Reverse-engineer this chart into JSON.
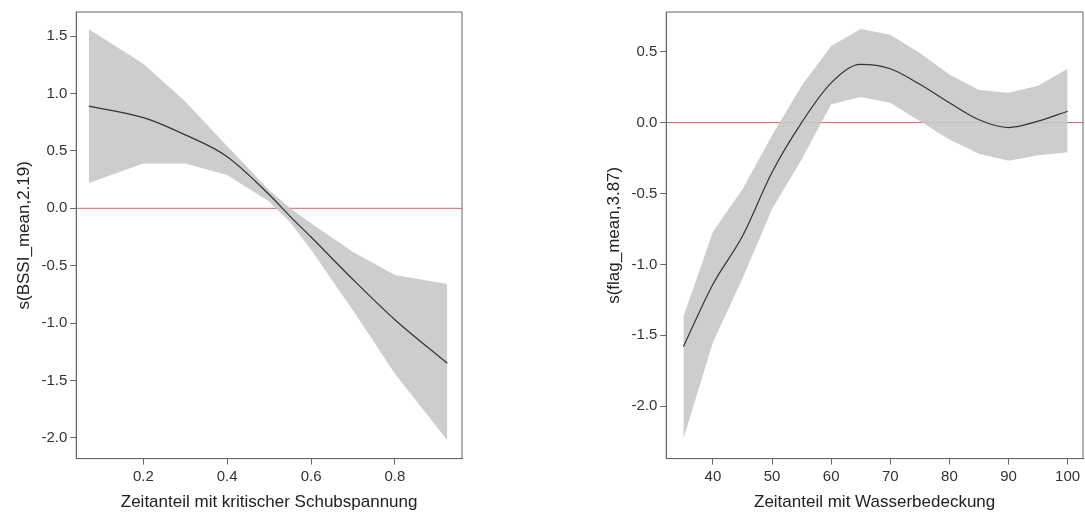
{
  "chart_data": [
    {
      "type": "line",
      "xlabel": "Zeitanteil mit kritischer Schubspannung",
      "ylabel": "s(BSSI_mean,2.19)",
      "x": [
        0.07,
        0.2,
        0.3,
        0.4,
        0.5,
        0.55,
        0.6,
        0.7,
        0.8,
        0.925
      ],
      "series": [
        {
          "color": "#333333",
          "values": [
            0.89,
            0.79,
            0.64,
            0.45,
            0.12,
            -0.07,
            -0.25,
            -0.62,
            -0.97,
            -1.35
          ],
          "upper": [
            1.56,
            1.26,
            0.93,
            0.54,
            0.16,
            0.0,
            -0.13,
            -0.38,
            -0.58,
            -0.66
          ],
          "lower": [
            0.22,
            0.39,
            0.39,
            0.29,
            0.06,
            -0.12,
            -0.36,
            -0.89,
            -1.44,
            -2.02
          ]
        }
      ],
      "xlim": [
        0.04,
        0.96
      ],
      "xticks": [
        0.2,
        0.4,
        0.6,
        0.8
      ],
      "ylim": [
        -2.18,
        1.71
      ],
      "yticks": [
        {
          "value": -2,
          "label": "-2.0"
        },
        {
          "value": -1.5,
          "label": "-1.5"
        },
        {
          "value": -1,
          "label": "-1.0"
        },
        {
          "value": -0.5,
          "label": "-0.5"
        },
        {
          "value": 0,
          "label": "0.0"
        },
        {
          "value": 0.5,
          "label": "0.5"
        },
        {
          "value": 1,
          "label": "1.0"
        },
        {
          "value": 1.5,
          "label": "1.5"
        }
      ],
      "ref_lines": [
        {
          "axis": "y",
          "value": 0,
          "color": "#e06060"
        }
      ],
      "grid": false,
      "legend": false,
      "marker": "none",
      "line_style": "solid"
    },
    {
      "type": "line",
      "xlabel": "Zeitanteil mit Wasserbedeckung",
      "ylabel": "s(flag_mean,3.87)",
      "x": [
        35,
        40,
        45,
        50,
        55,
        60,
        65,
        70,
        75,
        80,
        85,
        90,
        95,
        100
      ],
      "series": [
        {
          "color": "#333333",
          "values": [
            -1.58,
            -1.14,
            -0.8,
            -0.35,
            0.0,
            0.28,
            0.41,
            0.38,
            0.27,
            0.14,
            0.02,
            -0.035,
            0.01,
            0.08
          ],
          "upper": [
            -1.37,
            -0.77,
            -0.47,
            -0.09,
            0.26,
            0.54,
            0.66,
            0.62,
            0.49,
            0.34,
            0.23,
            0.21,
            0.26,
            0.38
          ],
          "lower": [
            -2.23,
            -1.55,
            -1.1,
            -0.61,
            -0.26,
            0.13,
            0.18,
            0.14,
            0.01,
            -0.12,
            -0.22,
            -0.27,
            -0.23,
            -0.21
          ]
        }
      ],
      "xlim": [
        32.1,
        102.6
      ],
      "xticks": [
        40,
        50,
        60,
        70,
        80,
        90,
        100
      ],
      "ylim": [
        -2.37,
        0.78
      ],
      "yticks": [
        {
          "value": -2,
          "label": "-2.0"
        },
        {
          "value": -1.5,
          "label": "-1.5"
        },
        {
          "value": -1,
          "label": "-1.0"
        },
        {
          "value": -0.5,
          "label": "-0.5"
        },
        {
          "value": 0,
          "label": "0.0"
        },
        {
          "value": 0.5,
          "label": "0.5"
        }
      ],
      "ref_lines": [
        {
          "axis": "y",
          "value": 0,
          "color": "#e06060"
        }
      ],
      "grid": false,
      "legend": false,
      "marker": "none",
      "line_style": "solid"
    }
  ]
}
